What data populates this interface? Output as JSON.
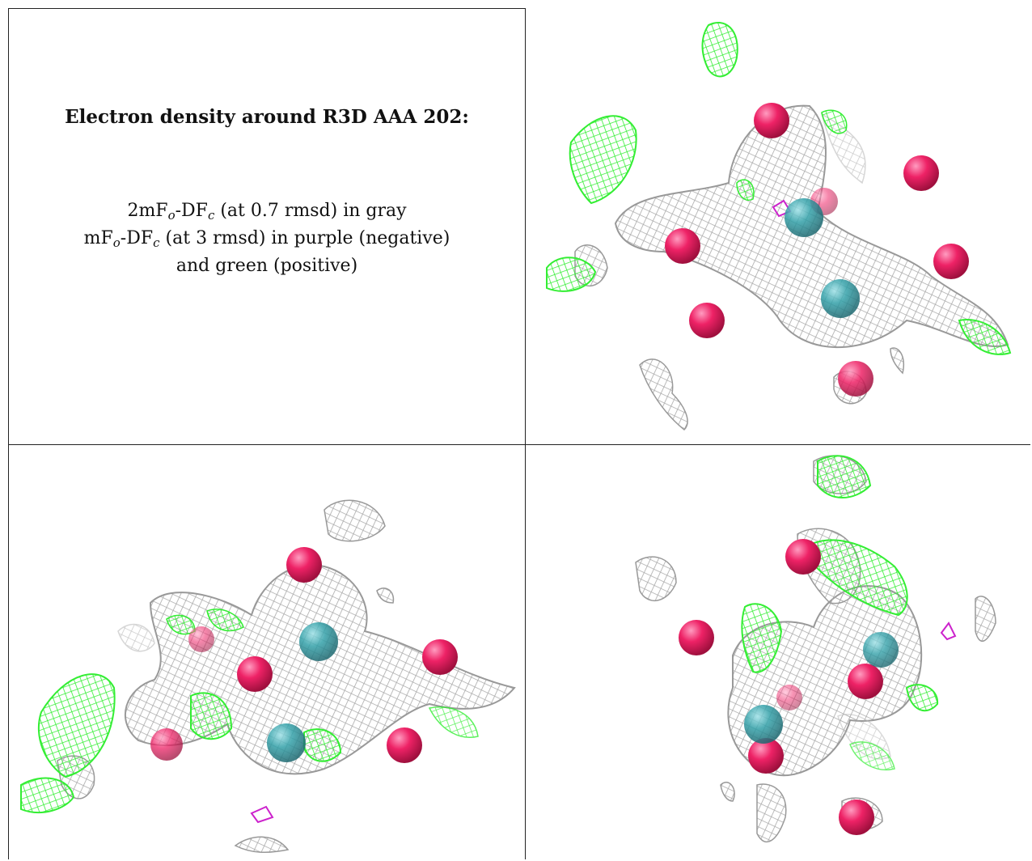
{
  "caption": {
    "title": "Electron density around R3D AAA 202:",
    "line1": {
      "a": "2mF",
      "a_sub": "o",
      "b": "-DF",
      "b_sub": "c",
      "tail": " (at 0.7 rmsd) in gray"
    },
    "line2": {
      "a": "mF",
      "a_sub": "o",
      "b": "-DF",
      "b_sub": "c",
      "tail": " (at 3 rmsd) in purple (negative)"
    },
    "line3": "and green (positive)"
  },
  "colors": {
    "gray_mesh": "#aaaaaa",
    "green_mesh": "#33ee33",
    "purple_mesh": "#cc22cc",
    "sphere_pink": "#ee2266",
    "sphere_teal": "#33a0a8"
  }
}
